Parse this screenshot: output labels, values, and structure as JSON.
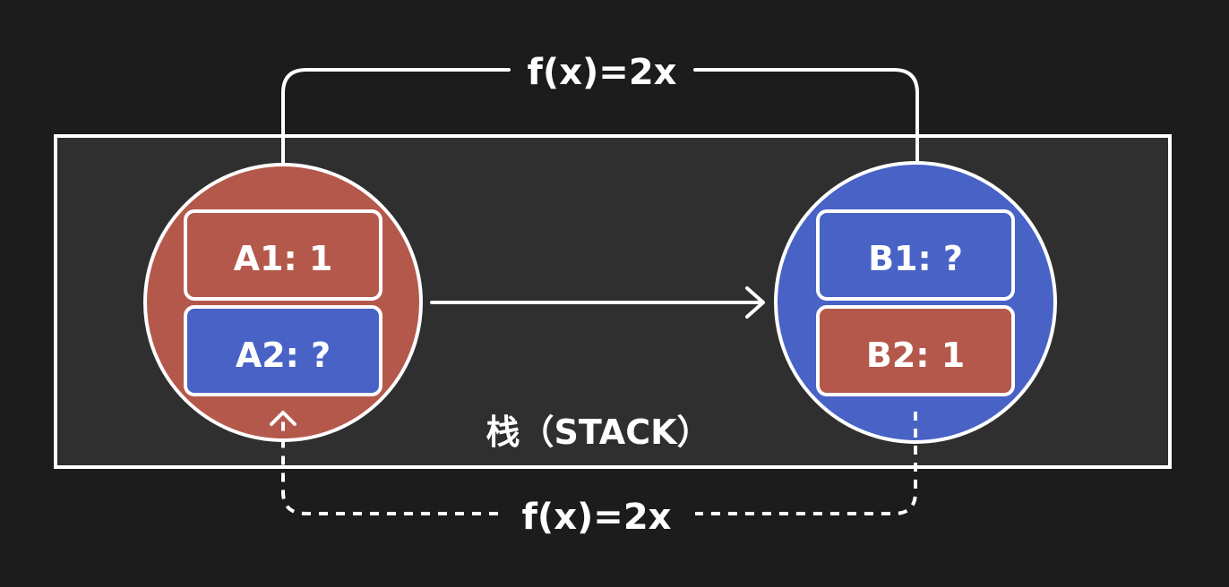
{
  "diagram": {
    "stack_label": "栈（STACK）",
    "top_function_label": "f(x)=2x",
    "bottom_function_label": "f(x)=2x",
    "node_a": {
      "cells": [
        {
          "label": "A1: 1",
          "color": "#b4584c"
        },
        {
          "label": "A2: ?",
          "color": "#4862c6"
        }
      ],
      "color": "#b4584c"
    },
    "node_b": {
      "cells": [
        {
          "label": "B1: ?",
          "color": "#4862c6"
        },
        {
          "label": "B2: 1",
          "color": "#b4584c"
        }
      ],
      "color": "#4862c6"
    },
    "colors": {
      "background": "#1c1c1c",
      "stack_fill": "#2f2f2f",
      "stroke": "#ffffff",
      "red": "#b4584c",
      "blue": "#4862c6"
    }
  }
}
